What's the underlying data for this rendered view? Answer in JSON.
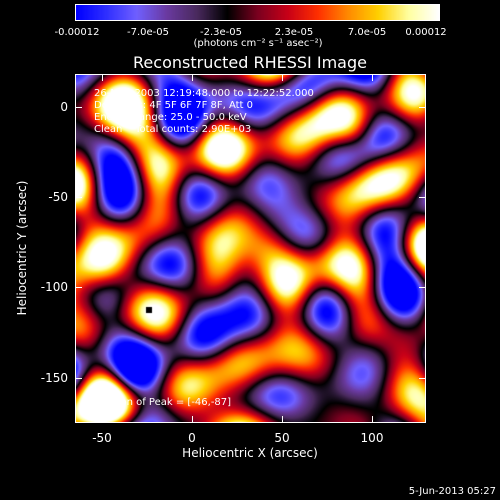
{
  "colorbar": {
    "tick_labels": [
      "-0.00012",
      "-7.0e-05",
      "-2.3e-05",
      "2.3e-05",
      "7.0e-05",
      "0.00012"
    ],
    "units": "(photons cm⁻² s⁻¹ asec⁻²)",
    "range": [
      -0.00012,
      0.00012
    ],
    "colormap": [
      "#0000ff",
      "#3030ff",
      "#7060ff",
      "#6a3aa0",
      "#4a2a5e",
      "#000000",
      "#7a0020",
      "#c80018",
      "#ff3000",
      "#ff8a00",
      "#ffd000",
      "#ffffa0",
      "#ffffff"
    ]
  },
  "plot": {
    "title": "Reconstructed RHESSI Image",
    "xlabel": "Heliocentric X (arcsec)",
    "ylabel": "Heliocentric Y (arcsec)",
    "xrange": [
      -65,
      130
    ],
    "yrange": [
      -175,
      18
    ],
    "x_tick_labels": [
      "-50",
      "0",
      "50",
      "100"
    ],
    "x_ticks": [
      -50,
      0,
      50,
      100
    ],
    "y_tick_labels": [
      "0",
      "-50",
      "-100",
      "-150"
    ],
    "y_ticks": [
      0,
      -50,
      -100,
      -150
    ]
  },
  "info": {
    "time_range": "26-May-2003 12:19:48.000 to 12:22:52.000",
    "detectors": "Detectors: 4F 5F 6F 7F 8F, Att 0",
    "energy": "Energy Range: 25.0 - 50.0 keV",
    "method": "Clean    Total counts: 2.90E+03",
    "peak": "Position of Peak = [-46,-87]"
  },
  "footer": {
    "date": "5-Jun-2013 05:27"
  }
}
